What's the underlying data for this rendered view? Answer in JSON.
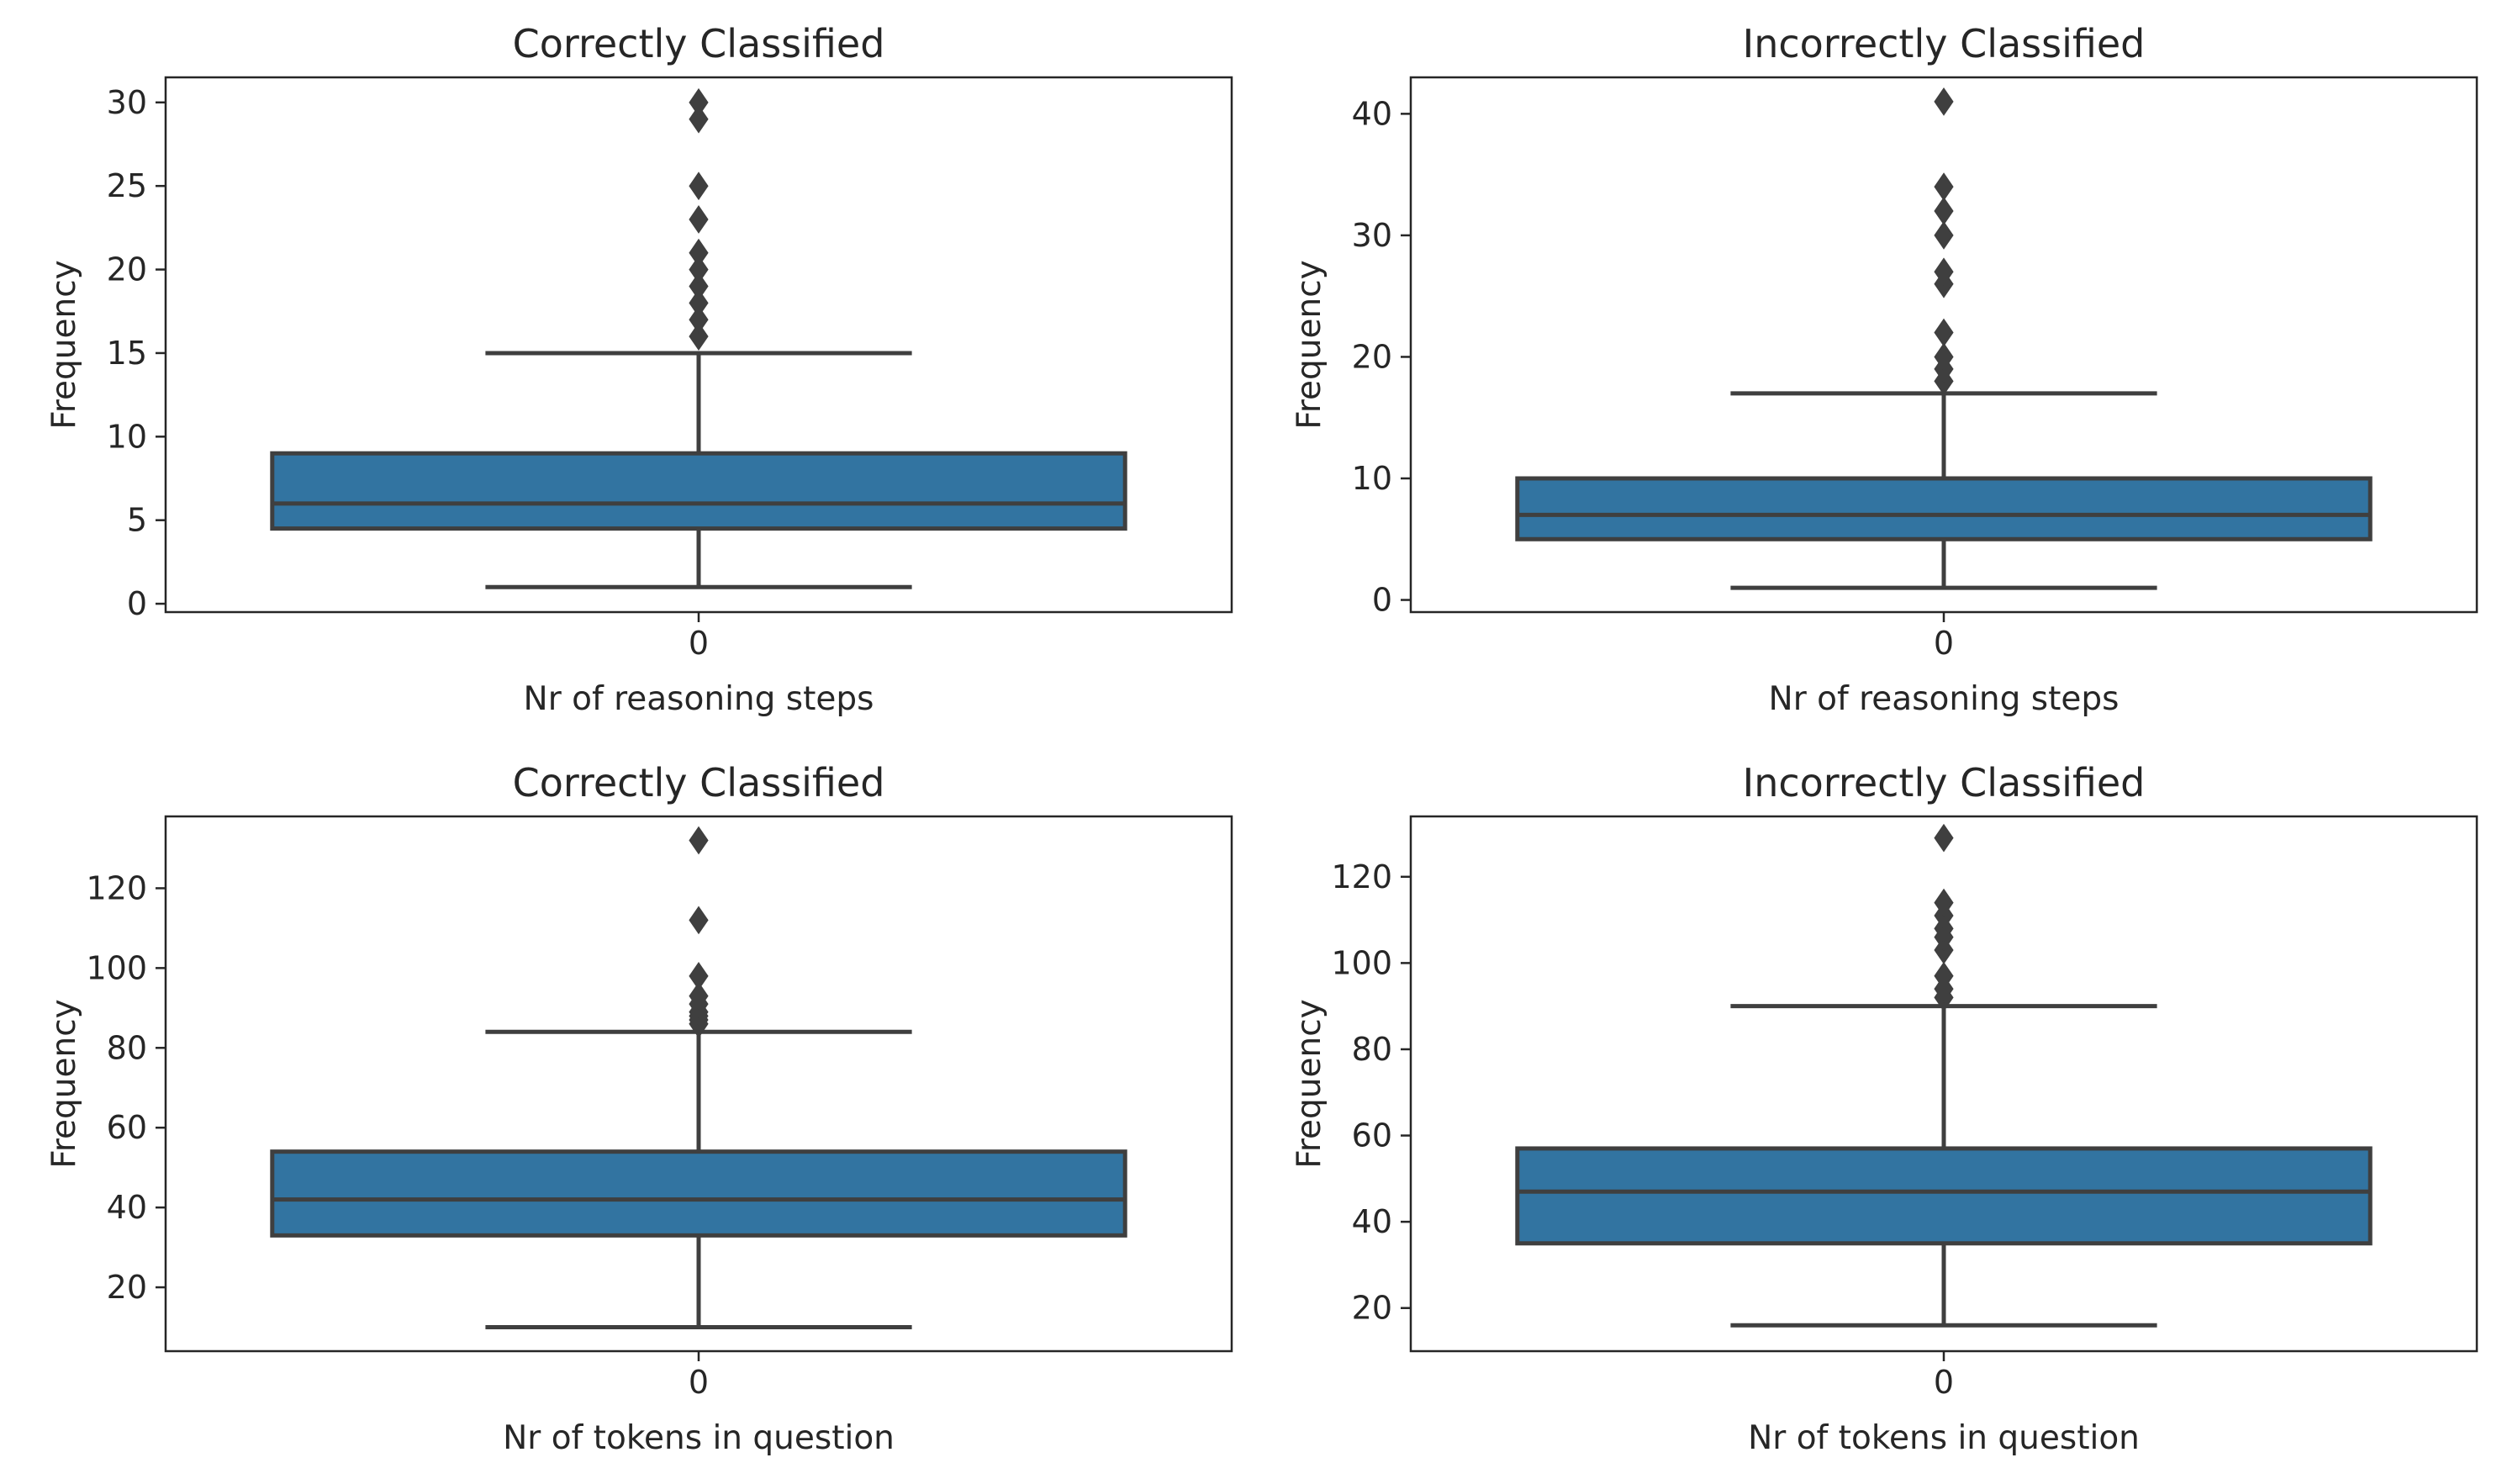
{
  "colors": {
    "box_fill": "#3274a1",
    "line": "#3f3f3f",
    "axes": "#262626",
    "background": "#ffffff"
  },
  "chart_data": [
    {
      "type": "box",
      "title": "Correctly Classified",
      "xlabel": "Nr of reasoning steps",
      "ylabel": "Frequency",
      "categories": [
        "0"
      ],
      "ylim": [
        -0.5,
        31.5
      ],
      "yticks": [
        0,
        5,
        10,
        15,
        20,
        25,
        30
      ],
      "grid": false,
      "box": {
        "whisker_low": 1,
        "q1": 4.5,
        "median": 6,
        "q3": 9,
        "whisker_high": 15
      },
      "outliers": [
        16,
        17,
        18,
        19,
        20,
        21,
        23,
        25,
        29,
        30
      ]
    },
    {
      "type": "box",
      "title": "Incorrectly Classified",
      "xlabel": "Nr of reasoning steps",
      "ylabel": "Frequency",
      "categories": [
        "0"
      ],
      "ylim": [
        -1,
        43
      ],
      "yticks": [
        0,
        10,
        20,
        30,
        40
      ],
      "grid": false,
      "box": {
        "whisker_low": 1,
        "q1": 5,
        "median": 7,
        "q3": 10,
        "whisker_high": 17
      },
      "outliers": [
        18,
        19,
        20,
        22,
        26,
        27,
        30,
        32,
        34,
        41
      ]
    },
    {
      "type": "box",
      "title": "Correctly Classified",
      "xlabel": "Nr of tokens in question",
      "ylabel": "Frequency",
      "categories": [
        "0"
      ],
      "ylim": [
        4,
        138
      ],
      "yticks": [
        20,
        40,
        60,
        80,
        100,
        120
      ],
      "grid": false,
      "box": {
        "whisker_low": 10,
        "q1": 33,
        "median": 42,
        "q3": 54,
        "whisker_high": 84
      },
      "outliers": [
        86,
        87,
        88,
        89,
        91,
        93,
        98,
        112,
        132
      ]
    },
    {
      "type": "box",
      "title": "Incorrectly Classified",
      "xlabel": "Nr of tokens in question",
      "ylabel": "Frequency",
      "categories": [
        "0"
      ],
      "ylim": [
        10,
        134
      ],
      "yticks": [
        20,
        40,
        60,
        80,
        100,
        120
      ],
      "grid": false,
      "box": {
        "whisker_low": 16,
        "q1": 35,
        "median": 47,
        "q3": 57,
        "whisker_high": 90
      },
      "outliers": [
        92,
        94,
        97,
        103,
        106,
        108,
        111,
        114,
        129
      ]
    }
  ]
}
